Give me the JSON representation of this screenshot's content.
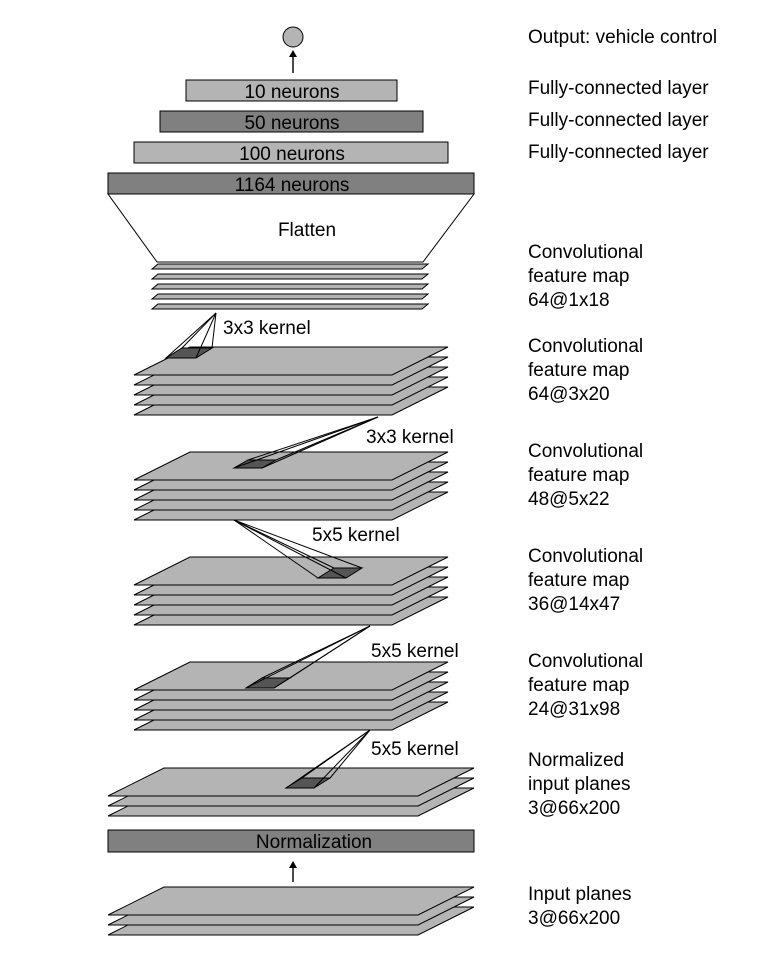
{
  "output_label": "Output: vehicle control",
  "fc_layers": [
    {
      "text": "10 neurons",
      "side": "Fully-connected layer"
    },
    {
      "text": "50 neurons",
      "side": "Fully-connected layer"
    },
    {
      "text": "100 neurons",
      "side": "Fully-connected layer"
    },
    {
      "text": "1164 neurons"
    }
  ],
  "flatten_label": "Flatten",
  "conv_maps": [
    {
      "line1": "Convolutional",
      "line2": "feature map",
      "line3": "64@1x18"
    },
    {
      "line1": "Convolutional",
      "line2": "feature map",
      "line3": "64@3x20"
    },
    {
      "line1": "Convolutional",
      "line2": "feature map",
      "line3": "48@5x22"
    },
    {
      "line1": "Convolutional",
      "line2": "feature map",
      "line3": "36@14x47"
    },
    {
      "line1": "Convolutional",
      "line2": "feature map",
      "line3": "24@31x98"
    }
  ],
  "kernels": [
    "3x3 kernel",
    "3x3 kernel",
    "5x5 kernel",
    "5x5 kernel",
    "5x5 kernel"
  ],
  "normalized_planes": {
    "line1": "Normalized",
    "line2": "input planes",
    "line3": "3@66x200"
  },
  "normalization_label": "Normalization",
  "input_planes": {
    "line1": "Input planes",
    "line2": "3@66x200"
  },
  "colors": {
    "light": "#b4b4b4",
    "dark": "#808080",
    "kernel": "#555555"
  }
}
